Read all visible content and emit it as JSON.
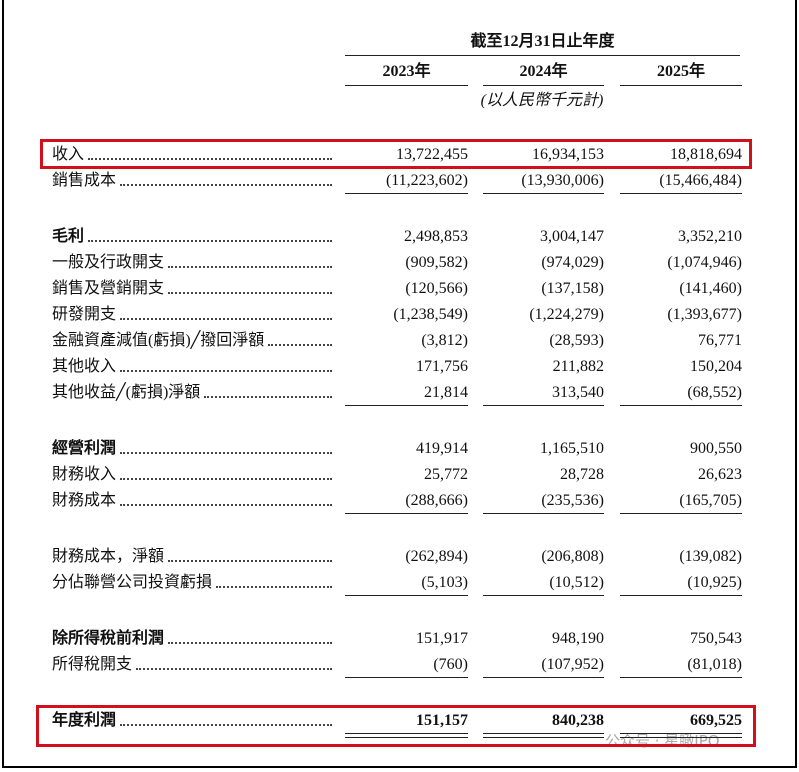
{
  "header": {
    "period": "截至12月31日止年度",
    "years": [
      "2023年",
      "2024年",
      "2025年"
    ],
    "unit": "(以人民幣千元計)"
  },
  "sections": [
    {
      "rows": [
        {
          "label": "收入",
          "values": [
            "13,722,455",
            "16,934,153",
            "18,818,694"
          ],
          "bold": false,
          "highlight": true
        },
        {
          "label": "銷售成本",
          "values": [
            "(11,223,602)",
            "(13,930,006)",
            "(15,466,484)"
          ],
          "bold": false
        }
      ]
    },
    {
      "rows": [
        {
          "label": "毛利",
          "values": [
            "2,498,853",
            "3,004,147",
            "3,352,210"
          ],
          "bold": true
        },
        {
          "label": "一般及行政開支",
          "values": [
            "(909,582)",
            "(974,029)",
            "(1,074,946)"
          ],
          "bold": false
        },
        {
          "label": "銷售及營銷開支",
          "values": [
            "(120,566)",
            "(137,158)",
            "(141,460)"
          ],
          "bold": false
        },
        {
          "label": "研發開支",
          "values": [
            "(1,238,549)",
            "(1,224,279)",
            "(1,393,677)"
          ],
          "bold": false
        },
        {
          "label": "金融資產減值(虧損)╱撥回淨額",
          "values": [
            "(3,812)",
            "(28,593)",
            "76,771"
          ],
          "bold": false
        },
        {
          "label": "其他收入",
          "values": [
            "171,756",
            "211,882",
            "150,204"
          ],
          "bold": false
        },
        {
          "label": "其他收益╱(虧損)淨額",
          "values": [
            "21,814",
            "313,540",
            "(68,552)"
          ],
          "bold": false
        }
      ]
    },
    {
      "rows": [
        {
          "label": "經營利潤",
          "values": [
            "419,914",
            "1,165,510",
            "900,550"
          ],
          "bold": true
        },
        {
          "label": "財務收入",
          "values": [
            "25,772",
            "28,728",
            "26,623"
          ],
          "bold": false
        },
        {
          "label": "財務成本",
          "values": [
            "(288,666)",
            "(235,536)",
            "(165,705)"
          ],
          "bold": false
        }
      ]
    },
    {
      "rows": [
        {
          "label": "財務成本，淨額",
          "values": [
            "(262,894)",
            "(206,808)",
            "(139,082)"
          ],
          "bold": false
        },
        {
          "label": "分佔聯營公司投資虧損",
          "values": [
            "(5,103)",
            "(10,512)",
            "(10,925)"
          ],
          "bold": false
        }
      ]
    },
    {
      "rows": [
        {
          "label": "除所得稅前利潤",
          "values": [
            "151,917",
            "948,190",
            "750,543"
          ],
          "bold": true
        },
        {
          "label": "所得稅開支",
          "values": [
            "(760)",
            "(107,952)",
            "(81,018)"
          ],
          "bold": false
        }
      ]
    },
    {
      "rows": [
        {
          "label": "年度利潤",
          "values": [
            "151,157",
            "840,238",
            "669,525"
          ],
          "bold": true,
          "bold_values": true,
          "highlight": true
        }
      ]
    }
  ],
  "watermark": "公众号 · 星瞰IPO"
}
